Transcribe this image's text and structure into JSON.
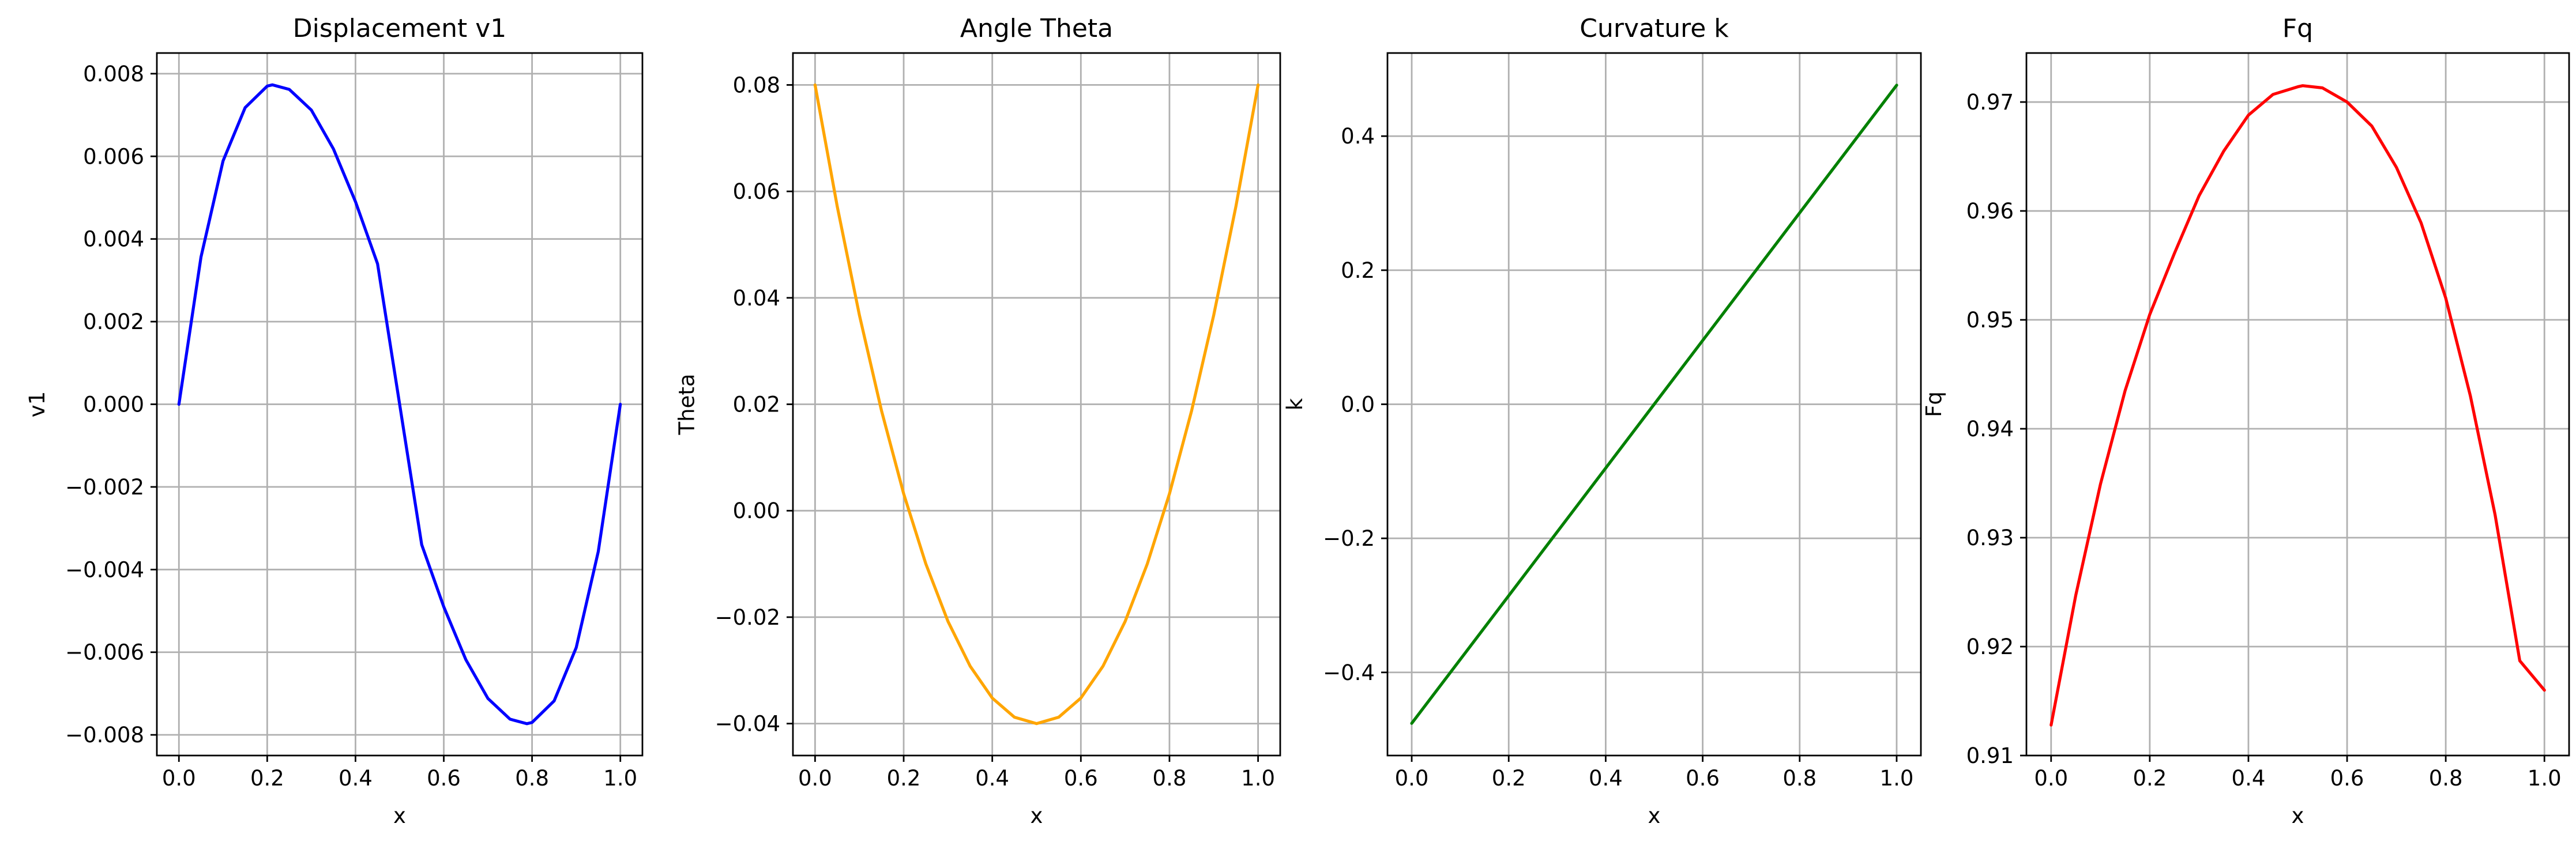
{
  "chart_data": [
    {
      "type": "line",
      "title": "Displacement v1",
      "xlabel": "x",
      "ylabel": "v1",
      "xlim": [
        -0.05,
        1.05
      ],
      "ylim": [
        -0.0085,
        0.0085
      ],
      "xticks": [
        0.0,
        0.2,
        0.4,
        0.6,
        0.8,
        1.0
      ],
      "xtick_labels": [
        "0.0",
        "0.2",
        "0.4",
        "0.6",
        "0.8",
        "1.0"
      ],
      "yticks": [
        -0.008,
        -0.006,
        -0.004,
        -0.002,
        0.0,
        0.002,
        0.004,
        0.006,
        0.008
      ],
      "ytick_labels": [
        "−0.008",
        "−0.006",
        "−0.004",
        "−0.002",
        "0.000",
        "0.002",
        "0.004",
        "0.006",
        "0.008"
      ],
      "grid": true,
      "series": [
        {
          "color": "#0000ff",
          "x": [
            0.0,
            0.05,
            0.1,
            0.15,
            0.2,
            0.212,
            0.25,
            0.3,
            0.35,
            0.4,
            0.45,
            0.5,
            0.55,
            0.6,
            0.65,
            0.7,
            0.75,
            0.788,
            0.8,
            0.85,
            0.9,
            0.95,
            1.0
          ],
          "y": [
            0.0,
            0.00356,
            0.00589,
            0.00718,
            0.0077,
            0.00773,
            0.00762,
            0.00712,
            0.00618,
            0.0049,
            0.0034,
            0.0,
            -0.0034,
            -0.0049,
            -0.00618,
            -0.00712,
            -0.00762,
            -0.00773,
            -0.0077,
            -0.00718,
            -0.00589,
            -0.00356,
            0.0
          ]
        }
      ]
    },
    {
      "type": "line",
      "title": "Angle Theta",
      "xlabel": "x",
      "ylabel": "Theta",
      "xlim": [
        -0.05,
        1.05
      ],
      "ylim": [
        -0.046,
        0.086
      ],
      "xticks": [
        0.0,
        0.2,
        0.4,
        0.6,
        0.8,
        1.0
      ],
      "xtick_labels": [
        "0.0",
        "0.2",
        "0.4",
        "0.6",
        "0.8",
        "1.0"
      ],
      "yticks": [
        -0.04,
        -0.02,
        0.0,
        0.02,
        0.04,
        0.06,
        0.08
      ],
      "ytick_labels": [
        "−0.04",
        "−0.02",
        "0.00",
        "0.02",
        "0.04",
        "0.06",
        "0.08"
      ],
      "grid": true,
      "series": [
        {
          "color": "#ffa500",
          "x": [
            0.0,
            0.05,
            0.1,
            0.15,
            0.2,
            0.25,
            0.3,
            0.35,
            0.4,
            0.45,
            0.5,
            0.55,
            0.6,
            0.65,
            0.7,
            0.75,
            0.8,
            0.85,
            0.9,
            0.95,
            1.0
          ],
          "y": [
            0.08,
            0.0572,
            0.0368,
            0.0188,
            0.0032,
            -0.01,
            -0.0208,
            -0.0292,
            -0.0352,
            -0.0388,
            -0.04,
            -0.0388,
            -0.0352,
            -0.0292,
            -0.0208,
            -0.01,
            0.0032,
            0.0188,
            0.0368,
            0.0572,
            0.08
          ]
        }
      ]
    },
    {
      "type": "line",
      "title": "Curvature k",
      "xlabel": "x",
      "ylabel": "k",
      "xlim": [
        -0.05,
        1.05
      ],
      "ylim": [
        -0.524,
        0.524
      ],
      "xticks": [
        0.0,
        0.2,
        0.4,
        0.6,
        0.8,
        1.0
      ],
      "xtick_labels": [
        "0.0",
        "0.2",
        "0.4",
        "0.6",
        "0.8",
        "1.0"
      ],
      "yticks": [
        -0.4,
        -0.2,
        0.0,
        0.2,
        0.4
      ],
      "ytick_labels": [
        "−0.4",
        "−0.2",
        "0.0",
        "0.2",
        "0.4"
      ],
      "grid": true,
      "series": [
        {
          "color": "#008000",
          "x": [
            0.0,
            0.5,
            1.0
          ],
          "y": [
            -0.476,
            0.0,
            0.476
          ]
        }
      ]
    },
    {
      "type": "line",
      "title": "Fq",
      "xlabel": "x",
      "ylabel": "Fq",
      "xlim": [
        -0.05,
        1.05
      ],
      "ylim": [
        0.91,
        0.9745
      ],
      "xticks": [
        0.0,
        0.2,
        0.4,
        0.6,
        0.8,
        1.0
      ],
      "xtick_labels": [
        "0.0",
        "0.2",
        "0.4",
        "0.6",
        "0.8",
        "1.0"
      ],
      "yticks": [
        0.91,
        0.92,
        0.93,
        0.94,
        0.95,
        0.96,
        0.97
      ],
      "ytick_labels": [
        "0.91",
        "0.92",
        "0.93",
        "0.94",
        "0.95",
        "0.96",
        "0.97"
      ],
      "grid": true,
      "series": [
        {
          "color": "#ff0000",
          "x": [
            0.0,
            0.05,
            0.1,
            0.15,
            0.2,
            0.25,
            0.3,
            0.35,
            0.4,
            0.45,
            0.5,
            0.51,
            0.55,
            0.6,
            0.65,
            0.7,
            0.75,
            0.8,
            0.85,
            0.9,
            0.95,
            1.0
          ],
          "y": [
            0.9128,
            0.9247,
            0.9349,
            0.9435,
            0.9505,
            0.9561,
            0.9614,
            0.9655,
            0.9688,
            0.9707,
            0.9714,
            0.9715,
            0.9713,
            0.97,
            0.9678,
            0.964,
            0.9589,
            0.952,
            0.943,
            0.9321,
            0.9187,
            0.916
          ]
        }
      ]
    }
  ]
}
